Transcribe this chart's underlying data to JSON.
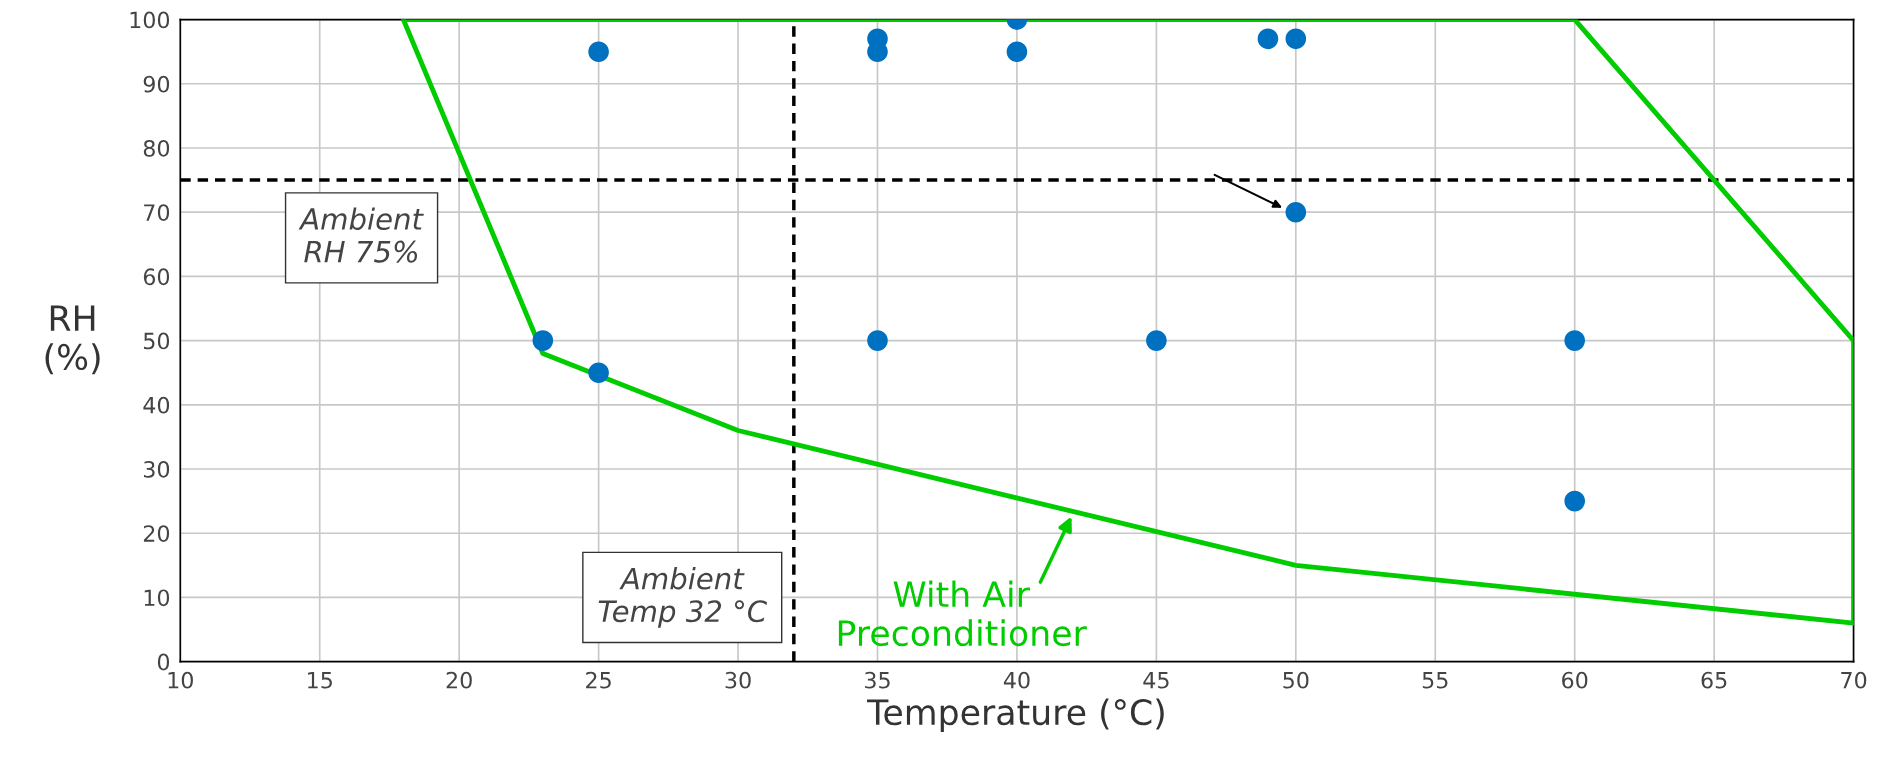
{
  "chart_data": {
    "type": "scatter",
    "xlabel": "Temperature (°C)",
    "ylabel": "RH\n(%)",
    "series": [
      {
        "color": "#0070c0",
        "marker": "circle",
        "x": [
          25,
          35,
          35,
          40,
          40,
          49,
          50,
          50,
          23,
          25,
          35,
          45,
          60,
          60
        ],
        "values": [
          95,
          97,
          95,
          100,
          95,
          97,
          97,
          70,
          50,
          45,
          50,
          50,
          50,
          25
        ]
      },
      {
        "type": "line",
        "color": "#00cc00",
        "marker": "none",
        "x": [
          18,
          60,
          70,
          70
        ],
        "values": [
          100,
          100,
          50,
          6
        ]
      },
      {
        "type": "line",
        "color": "#00cc00",
        "marker": "none",
        "x": [
          18,
          23,
          30,
          50,
          70
        ],
        "values": [
          100,
          48,
          36,
          15,
          6
        ]
      }
    ],
    "ref_lines": [
      {
        "axis": "y",
        "value": 75,
        "label": "Ambient\nRH 75%",
        "color": "#000000",
        "line_style": "dashed"
      },
      {
        "axis": "x",
        "value": 32,
        "label": "Ambient\nTemp 32 °C",
        "color": "#000000",
        "line_style": "dashed"
      }
    ],
    "annotations": [
      "With Air\nPreconditioner"
    ],
    "xlim": [
      10,
      70
    ],
    "xticks": [
      10,
      15,
      20,
      25,
      30,
      35,
      40,
      45,
      50,
      55,
      60,
      65,
      70
    ],
    "ylim": [
      0,
      100
    ],
    "yticks": [
      0,
      10,
      20,
      30,
      40,
      50,
      60,
      70,
      80,
      90,
      100
    ],
    "grid": true
  }
}
